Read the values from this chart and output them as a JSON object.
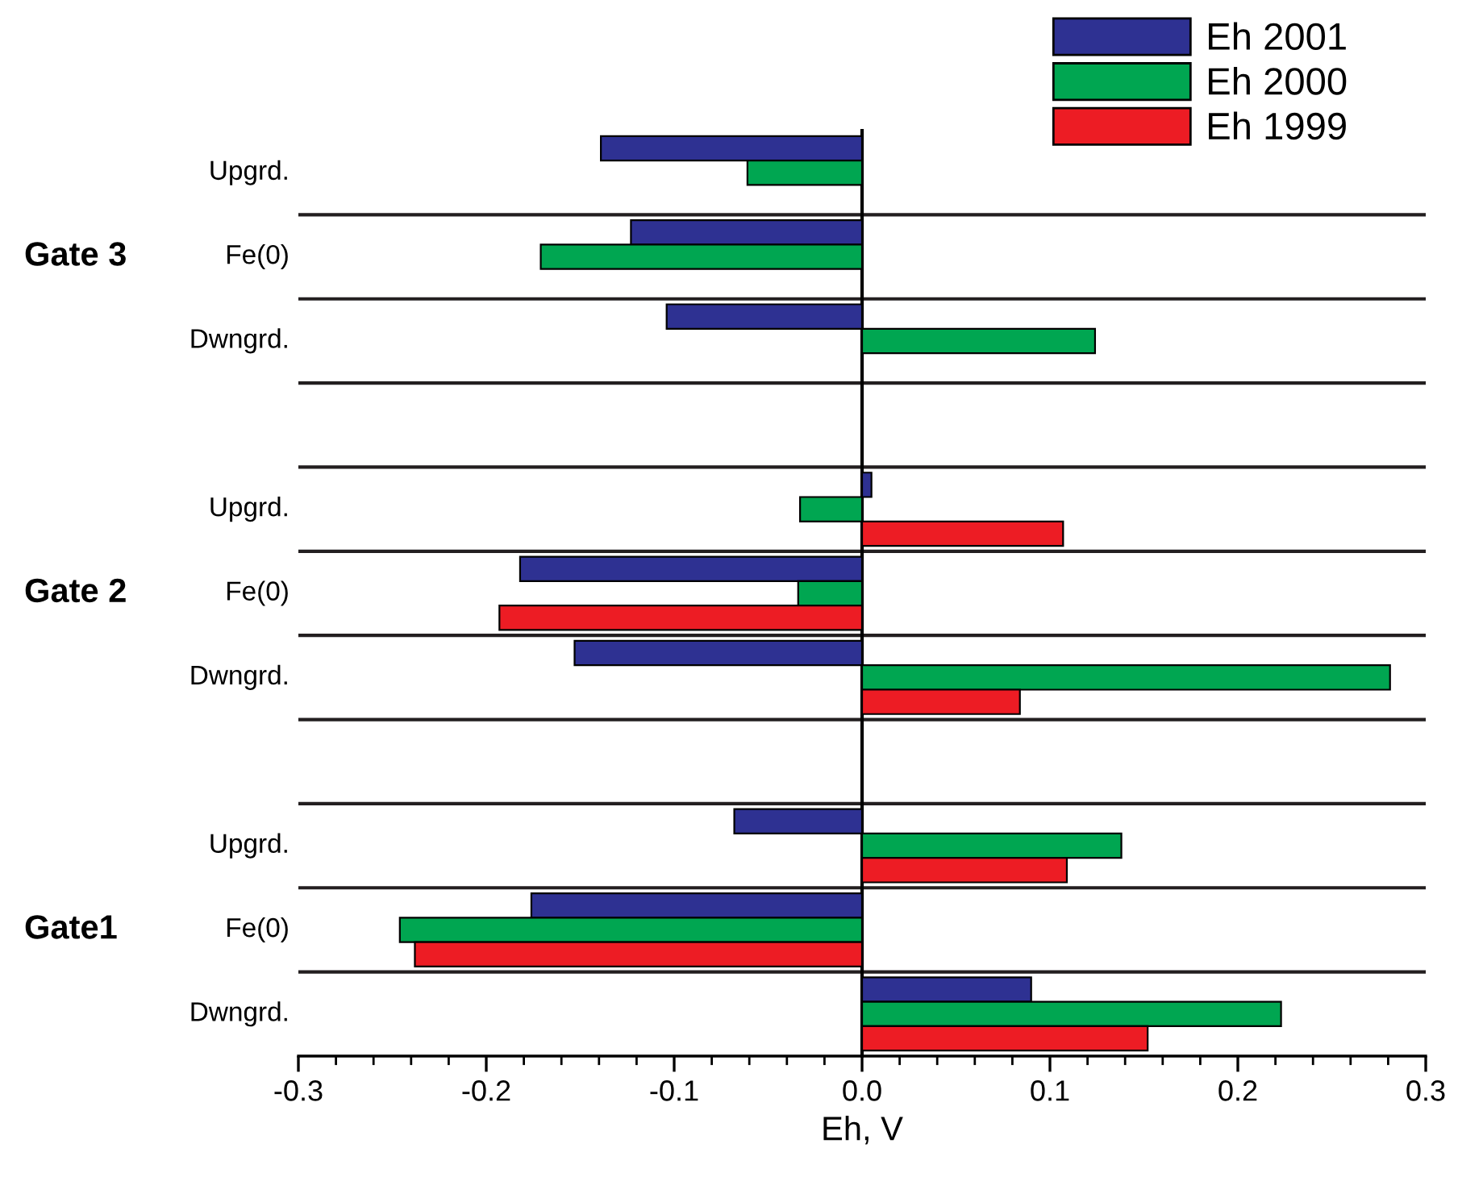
{
  "chart_data": {
    "type": "bar",
    "orientation": "horizontal",
    "xlabel": "Eh, V",
    "categories": [
      "Upgrd.",
      "Fe(0)",
      "Dwngrd.",
      null,
      "Upgrd.",
      "Fe(0)",
      "Dwngrd.",
      null,
      "Upgrd.",
      "Fe(0)",
      "Dwngrd."
    ],
    "series": [
      {
        "name": "Eh 2001",
        "color": "#2e3192",
        "values": [
          -0.139,
          -0.123,
          -0.104,
          null,
          0.005,
          -0.182,
          -0.153,
          null,
          -0.068,
          -0.176,
          0.09
        ]
      },
      {
        "name": "Eh 2000",
        "color": "#00a651",
        "values": [
          -0.061,
          -0.171,
          0.124,
          null,
          -0.033,
          -0.034,
          0.281,
          null,
          0.138,
          -0.246,
          0.223
        ]
      },
      {
        "name": "Eh 1999",
        "color": "#ed1c24",
        "values": [
          null,
          null,
          null,
          null,
          0.107,
          -0.193,
          0.084,
          null,
          0.109,
          -0.238,
          0.152
        ]
      }
    ],
    "annotations": [
      "Gate 3",
      "Gate 2",
      "Gate1"
    ],
    "xlim": [
      -0.3,
      0.3
    ],
    "xticks": [
      -0.3,
      -0.2,
      -0.1,
      {
        "value": 0,
        "label": "0.0"
      },
      0.1,
      0.2,
      0.3
    ],
    "grid": "y",
    "legend": "top right"
  }
}
